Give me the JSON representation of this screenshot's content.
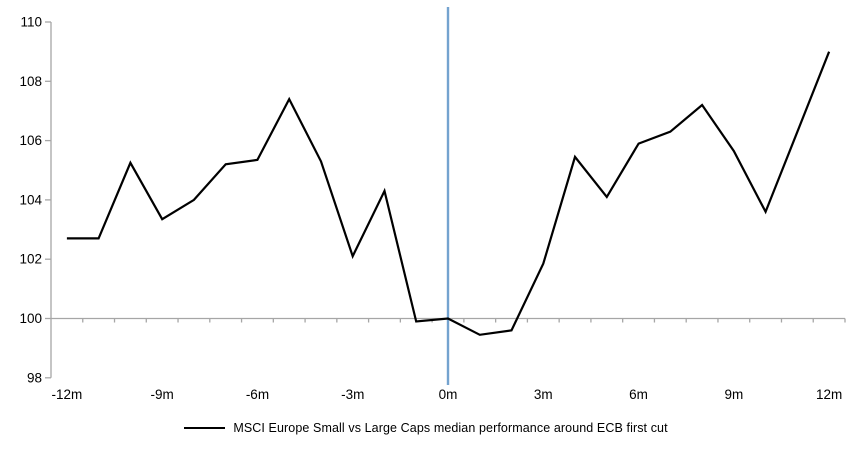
{
  "chart_data": {
    "type": "line",
    "title": "",
    "x": [
      -12,
      -11,
      -10,
      -9,
      -8,
      -7,
      -6,
      -5,
      -4,
      -3,
      -2,
      -1,
      0,
      1,
      2,
      3,
      4,
      5,
      6,
      7,
      8,
      9,
      10,
      11,
      12
    ],
    "series": [
      {
        "name": "MSCI Europe Small vs Large Caps median performance around ECB first cut",
        "color": "#000000",
        "values": [
          102.7,
          102.7,
          105.25,
          103.35,
          104.0,
          105.2,
          105.35,
          107.4,
          105.3,
          102.1,
          104.3,
          99.9,
          100.0,
          99.45,
          99.6,
          101.85,
          105.45,
          104.1,
          105.9,
          106.3,
          107.2,
          105.65,
          103.6,
          106.3,
          109.0
        ]
      }
    ],
    "x_ticks": [
      {
        "x": -12,
        "label": "-12m"
      },
      {
        "x": -9,
        "label": "-9m"
      },
      {
        "x": -6,
        "label": "-6m"
      },
      {
        "x": -3,
        "label": "-3m"
      },
      {
        "x": 0,
        "label": "0m"
      },
      {
        "x": 3,
        "label": "3m"
      },
      {
        "x": 6,
        "label": "6m"
      },
      {
        "x": 9,
        "label": "9m"
      },
      {
        "x": 12,
        "label": "12m"
      }
    ],
    "y_ticks": [
      98,
      100,
      102,
      104,
      106,
      108,
      110
    ],
    "ylim": [
      98,
      110
    ],
    "baseline_y": 100,
    "event_line": {
      "x": 0,
      "color": "#74A3CF"
    },
    "axis_color": "#A6A6A6",
    "grid": "off",
    "legend_position": "bottom"
  }
}
